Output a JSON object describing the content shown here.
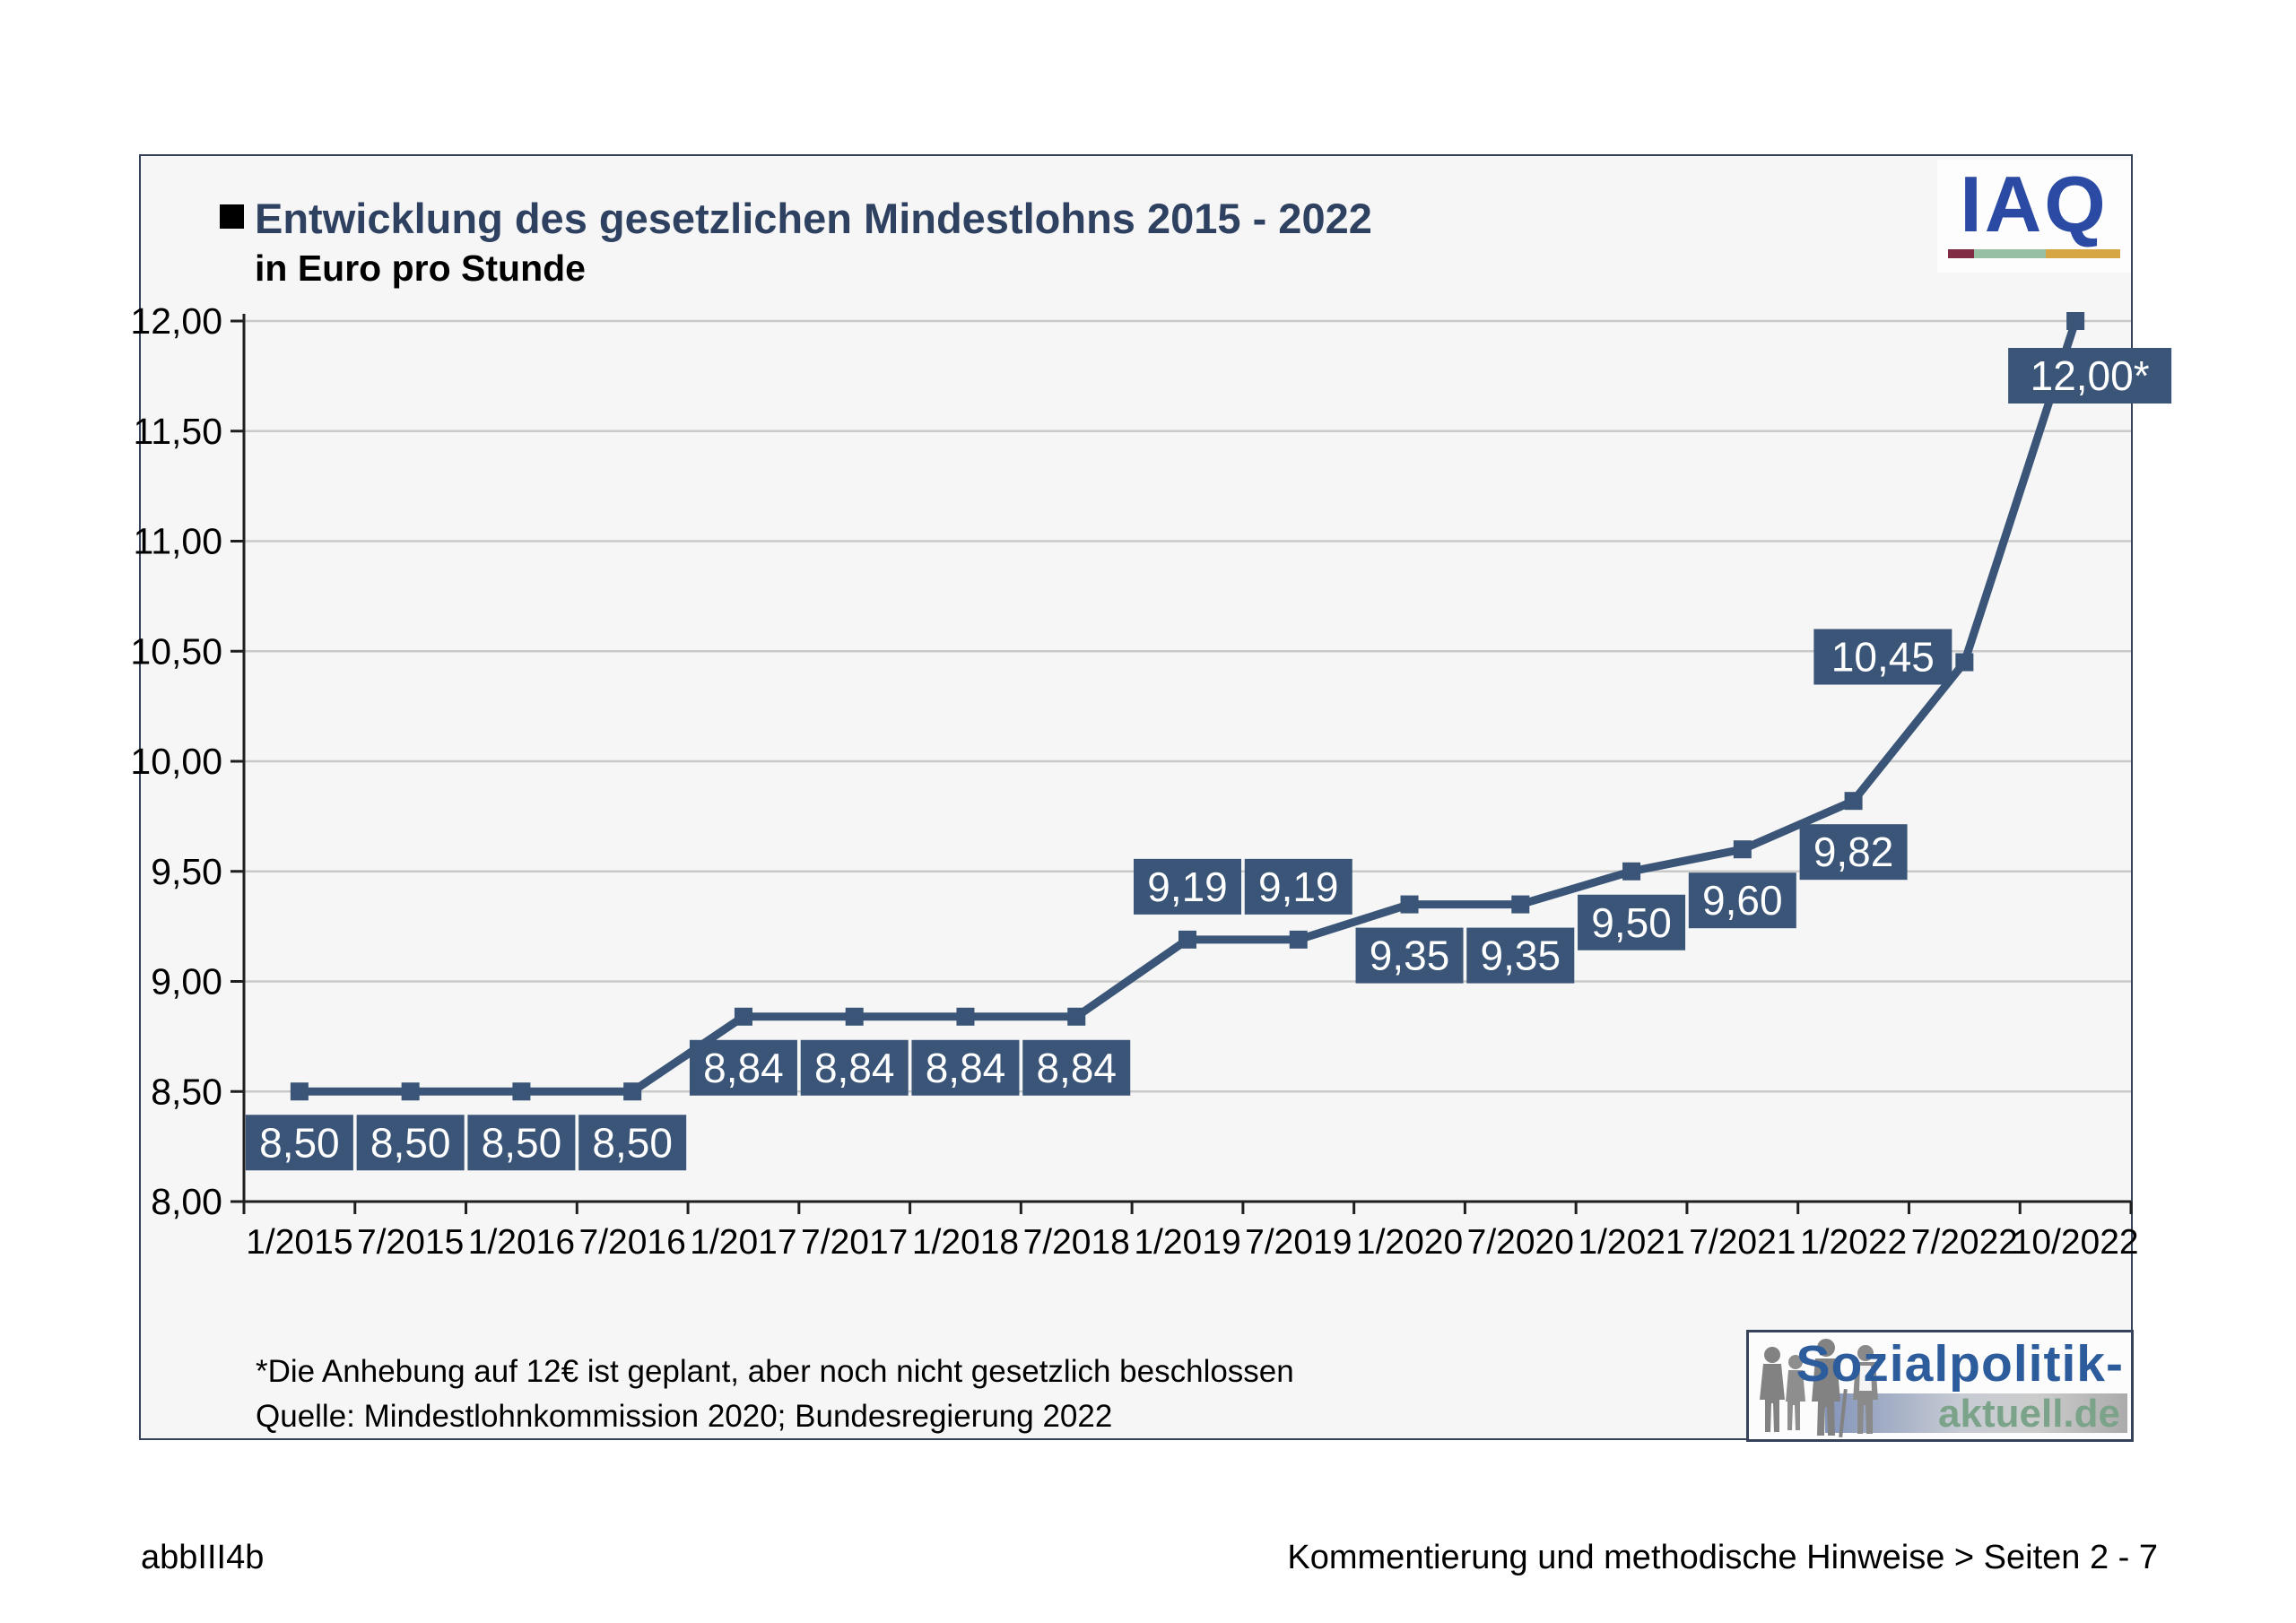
{
  "chart": {
    "title": "Entwicklung des gesetzlichen Mindestlohns 2015 - 2022",
    "subtitle": "in Euro pro Stunde",
    "footnote": "*Die Anhebung auf 12€ ist geplant, aber noch nicht gesetzlich beschlossen",
    "source": "Quelle: Mindestlohnkommission 2020; Bundesregierung 2022"
  },
  "logos": {
    "iaq": {
      "text": "IAQ",
      "bar_colors": [
        "#802c44",
        "#97bfa3",
        "#d6a544"
      ]
    },
    "sozialpolitik": {
      "line1": "Sozialpolitik-",
      "line2": "aktuell.de"
    }
  },
  "page_footer": {
    "left": "abbIII4b",
    "right": "Kommentierung und methodische Hinweise > Seiten 2 - 7"
  },
  "chart_data": {
    "type": "line",
    "title": "Entwicklung des gesetzlichen Mindestlohns 2015 - 2022",
    "subtitle": "in Euro pro Stunde",
    "categories": [
      "1/2015",
      "7/2015",
      "1/2016",
      "7/2016",
      "1/2017",
      "7/2017",
      "1/2018",
      "7/2018",
      "1/2019",
      "7/2019",
      "1/2020",
      "7/2020",
      "1/2021",
      "7/2021",
      "1/2022",
      "7/2022",
      "10/2022"
    ],
    "values": [
      8.5,
      8.5,
      8.5,
      8.5,
      8.84,
      8.84,
      8.84,
      8.84,
      9.19,
      9.19,
      9.35,
      9.35,
      9.5,
      9.6,
      9.82,
      10.45,
      12.0
    ],
    "point_labels": [
      "8,50",
      "8,50",
      "8,50",
      "8,50",
      "8,84",
      "8,84",
      "8,84",
      "8,84",
      "9,19",
      "9,19",
      "9,35",
      "9,35",
      "9,50",
      "9,60",
      "9,82",
      "10,45",
      "12,00*"
    ],
    "label_positions": [
      "below",
      "below",
      "below",
      "below",
      "below",
      "below",
      "below",
      "below",
      "above",
      "above",
      "below",
      "below",
      "below",
      "below",
      "below",
      "left",
      "below-right"
    ],
    "ylim": [
      8.0,
      12.0
    ],
    "ytick_values": [
      8.0,
      8.5,
      9.0,
      9.5,
      10.0,
      10.5,
      11.0,
      11.5,
      12.0
    ],
    "ytick_labels": [
      "8,00",
      "8,50",
      "9,00",
      "9,50",
      "10,00",
      "10,50",
      "11,00",
      "11,50",
      "12,00"
    ],
    "grid": true,
    "legend": "none",
    "line_color": "#3a5577",
    "label_box_color": "#3a5577",
    "label_text_color": "#ffffff",
    "grid_color": "#c9c9c9",
    "axis_color": "#1f1f1f"
  }
}
